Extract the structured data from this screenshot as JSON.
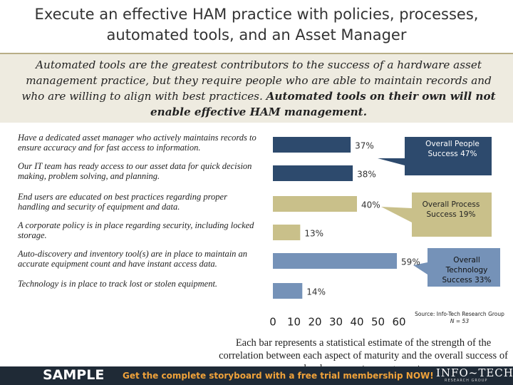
{
  "title": "Execute an effective HAM practice with policies, processes, automated tools, and an Asset Manager",
  "intro": "Automated tools are the greatest contributors to the success of a hardware asset management practice, but they require people who are able to maintain records and who are willing to align with best practices.",
  "intro_emphasis": "Automated tools on their own will not enable effective HAM management.",
  "chart_data": {
    "type": "bar",
    "orientation": "horizontal",
    "categories": [
      "Have a dedicated asset manager who actively maintains records to ensure accuracy and for fast access to information.",
      "Our IT team has ready access to our asset data for quick decision making, problem solving, and planning.",
      "End users are educated on best practices regarding proper handling and security of equipment and data.",
      "A corporate policy is in place regarding security, including locked storage.",
      "Auto-discovery and inventory tool(s) are in place to maintain an accurate equipment count and have instant access data.",
      "Technology is in place to track lost or stolen equipment."
    ],
    "values": [
      37,
      38,
      40,
      13,
      59,
      14
    ],
    "value_labels": [
      "37%",
      "38%",
      "40%",
      "13%",
      "59%",
      "14%"
    ],
    "colors": [
      "#2d4a6d",
      "#2d4a6d",
      "#c9c08a",
      "#c9c08a",
      "#7592b8",
      "#7592b8"
    ],
    "xlim": [
      0,
      60
    ],
    "xticks": [
      0,
      10,
      20,
      30,
      40,
      50,
      60
    ],
    "annotations": [
      "Overall People Success 47%",
      "Overall Process Success 19%",
      "Overall Technology Success 33%"
    ],
    "source": "Source: Info-Tech Research Group",
    "sample_size": "N = 53",
    "caption": "Each bar represents a statistical estimate of the strength of the correlation between each aspect of maturity and the overall success of hardware asset management."
  },
  "banner": {
    "sample": "SAMPLE",
    "offer": "Get the complete storyboard with a free trial membership NOW!",
    "logo": "INFO~TECH",
    "logo_sub": "RESEARCH GROUP"
  }
}
